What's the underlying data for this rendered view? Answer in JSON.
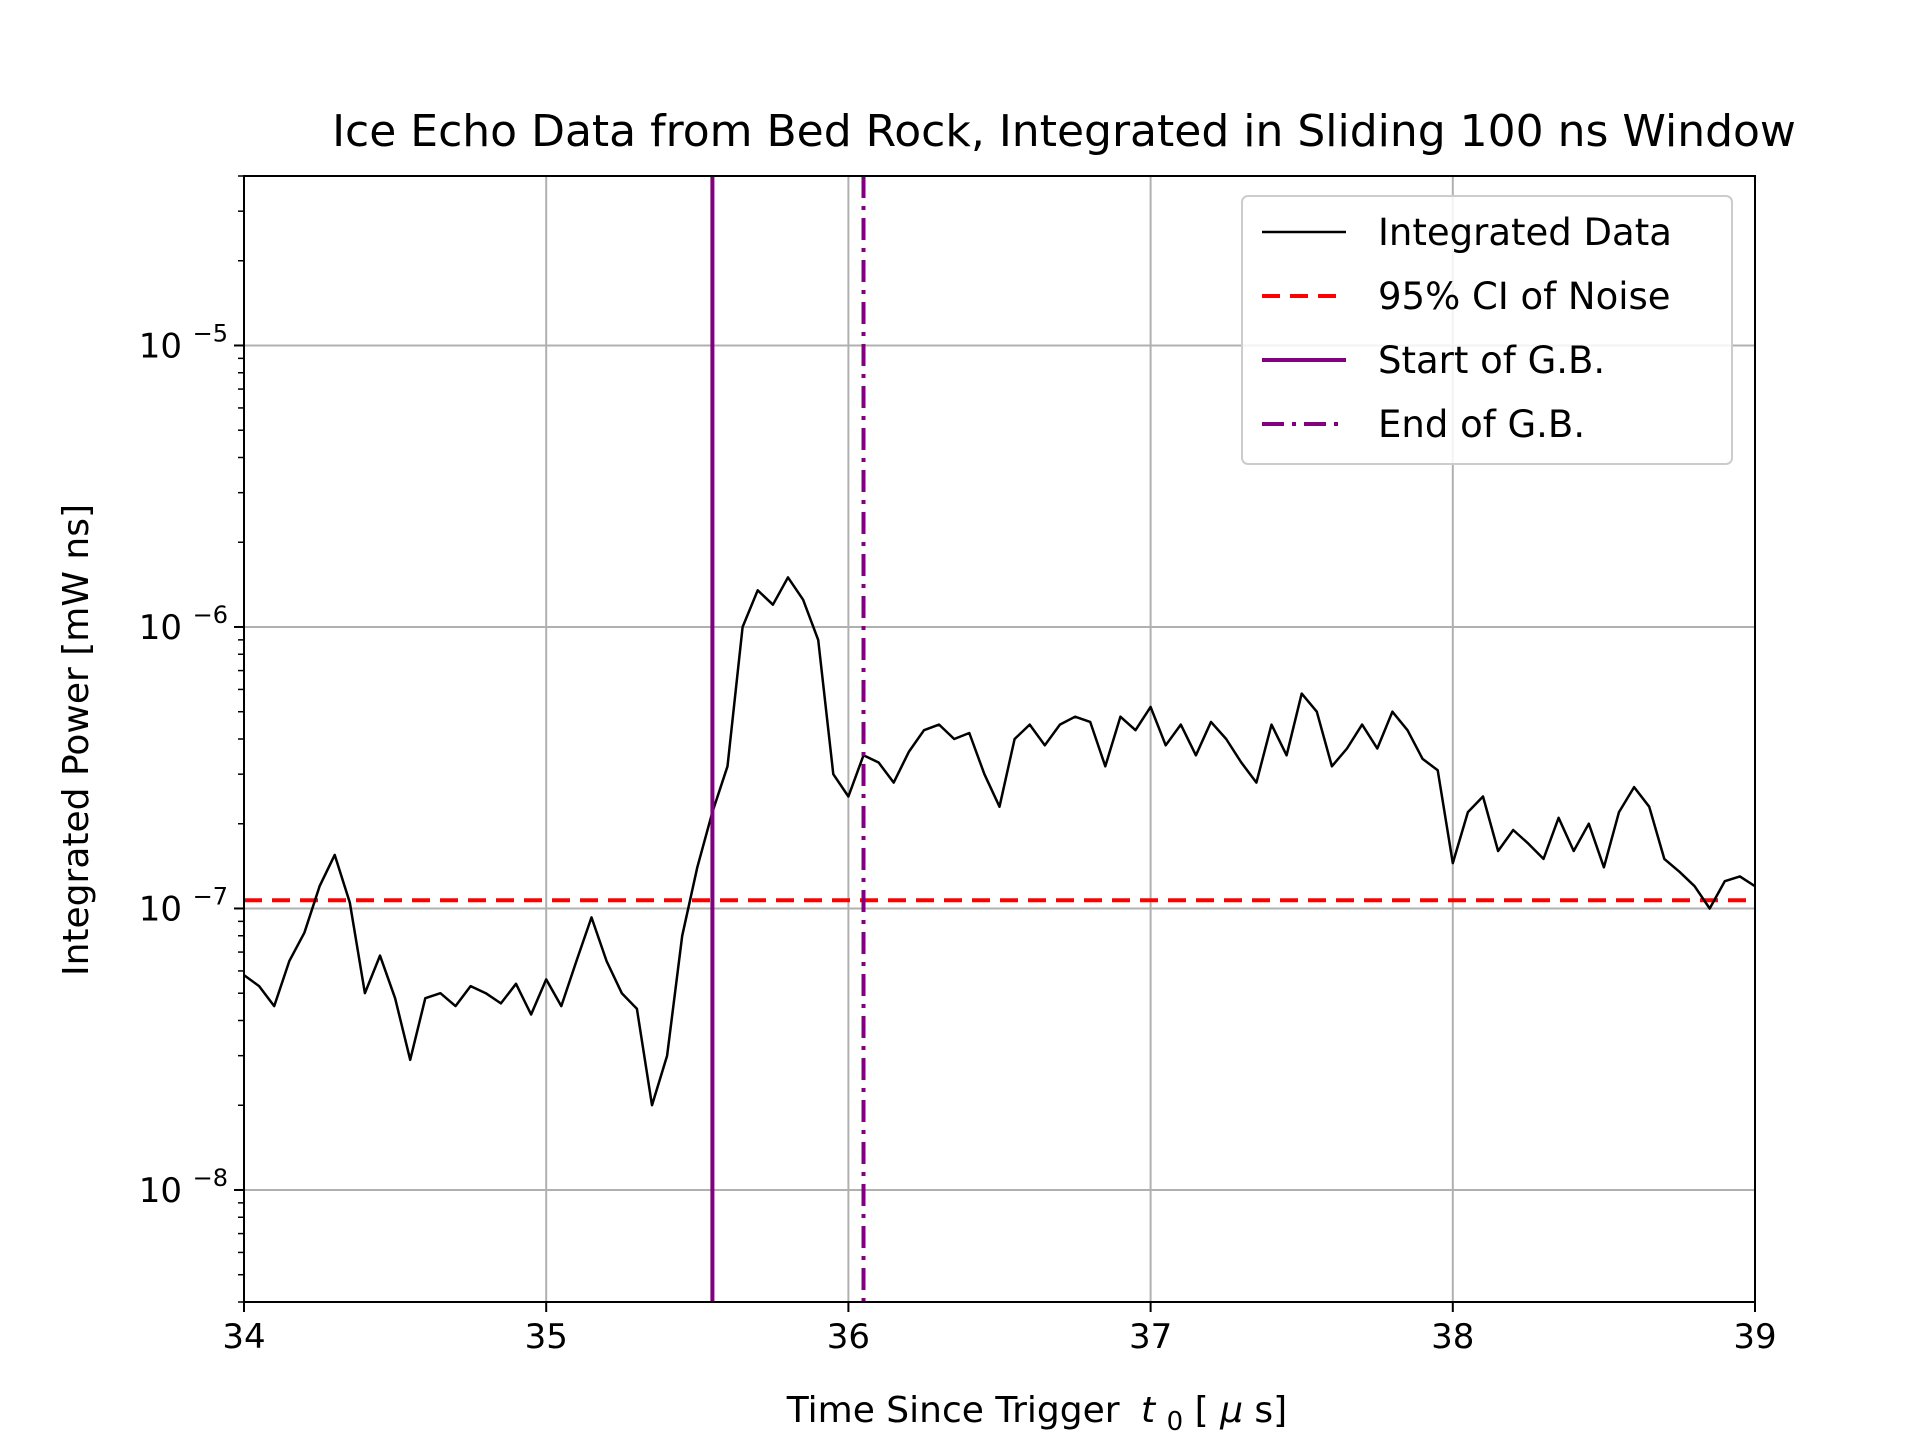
{
  "chart_data": {
    "type": "line",
    "title": "Ice Echo Data from Bed Rock, Integrated in Sliding 100 ns Window",
    "xlabel": "Time Since Trigger",
    "xlabel_symbol": "t",
    "xlabel_subscript": "0",
    "xlabel_unit_open": " [",
    "xlabel_unit_mu": "μ",
    "xlabel_unit_rest": "s]",
    "ylabel": "Integrated Power [mW ns]",
    "xlim": [
      34,
      39
    ],
    "ylim": [
      4e-09,
      4e-05
    ],
    "yscale": "log",
    "grid": true,
    "legend_position": "top-right",
    "x_ticks": [
      "34",
      "35",
      "36",
      "37",
      "38",
      "39"
    ],
    "y_ticks": [
      {
        "value": 1e-08,
        "base": "10",
        "exp": "−8"
      },
      {
        "value": 1e-07,
        "base": "10",
        "exp": "−7"
      },
      {
        "value": 1e-06,
        "base": "10",
        "exp": "−6"
      },
      {
        "value": 1e-05,
        "base": "10",
        "exp": "−5"
      }
    ],
    "series": [
      {
        "name": "Integrated Data",
        "color": "#000000",
        "style": "solid",
        "x": [
          34.0,
          34.05,
          34.1,
          34.15,
          34.2,
          34.25,
          34.3,
          34.35,
          34.4,
          34.45,
          34.5,
          34.55,
          34.6,
          34.65,
          34.7,
          34.75,
          34.8,
          34.85,
          34.9,
          34.95,
          35.0,
          35.05,
          35.1,
          35.15,
          35.2,
          35.25,
          35.3,
          35.35,
          35.4,
          35.45,
          35.5,
          35.55,
          35.6,
          35.65,
          35.7,
          35.75,
          35.8,
          35.85,
          35.9,
          35.95,
          36.0,
          36.05,
          36.1,
          36.15,
          36.2,
          36.25,
          36.3,
          36.35,
          36.4,
          36.45,
          36.5,
          36.55,
          36.6,
          36.65,
          36.7,
          36.75,
          36.8,
          36.85,
          36.9,
          36.95,
          37.0,
          37.05,
          37.1,
          37.15,
          37.2,
          37.25,
          37.3,
          37.35,
          37.4,
          37.45,
          37.5,
          37.55,
          37.6,
          37.65,
          37.7,
          37.75,
          37.8,
          37.85,
          37.9,
          37.95,
          38.0,
          38.05,
          38.1,
          38.15,
          38.2,
          38.25,
          38.3,
          38.35,
          38.4,
          38.45,
          38.5,
          38.55,
          38.6,
          38.65,
          38.7,
          38.75,
          38.8,
          38.85,
          38.9,
          38.95,
          39.0
        ],
        "y": [
          5.8e-08,
          5.3e-08,
          4.5e-08,
          6.5e-08,
          8.2e-08,
          1.2e-07,
          1.55e-07,
          1.05e-07,
          5e-08,
          6.8e-08,
          4.8e-08,
          2.9e-08,
          4.8e-08,
          5e-08,
          4.5e-08,
          5.3e-08,
          5e-08,
          4.6e-08,
          5.4e-08,
          4.2e-08,
          5.6e-08,
          4.5e-08,
          6.5e-08,
          9.3e-08,
          6.5e-08,
          5e-08,
          4.4e-08,
          2e-08,
          3e-08,
          8e-08,
          1.4e-07,
          2.2e-07,
          3.2e-07,
          1e-06,
          1.35e-06,
          1.2e-06,
          1.5e-06,
          1.25e-06,
          9e-07,
          3e-07,
          2.5e-07,
          3.5e-07,
          3.3e-07,
          2.8e-07,
          3.6e-07,
          4.3e-07,
          4.5e-07,
          4e-07,
          4.2e-07,
          3e-07,
          2.3e-07,
          4e-07,
          4.5e-07,
          3.8e-07,
          4.5e-07,
          4.8e-07,
          4.6e-07,
          3.2e-07,
          4.8e-07,
          4.3e-07,
          5.2e-07,
          3.8e-07,
          4.5e-07,
          3.5e-07,
          4.6e-07,
          4e-07,
          3.3e-07,
          2.8e-07,
          4.5e-07,
          3.5e-07,
          5.8e-07,
          5e-07,
          3.2e-07,
          3.7e-07,
          4.5e-07,
          3.7e-07,
          5e-07,
          4.3e-07,
          3.4e-07,
          3.1e-07,
          1.45e-07,
          2.2e-07,
          2.5e-07,
          1.6e-07,
          1.9e-07,
          1.7e-07,
          1.5e-07,
          2.1e-07,
          1.6e-07,
          2e-07,
          1.4e-07,
          2.2e-07,
          2.7e-07,
          2.3e-07,
          1.5e-07,
          1.35e-07,
          1.2e-07,
          1e-07,
          1.25e-07,
          1.3e-07,
          1.2e-07
        ]
      },
      {
        "name": "95% CI of Noise",
        "color": "#ff0000",
        "style": "dashed",
        "value": 1.07e-07
      },
      {
        "name": "Start of G.B.",
        "color": "#800080",
        "style": "solid",
        "value": 35.55
      },
      {
        "name": "End of G.B.",
        "color": "#800080",
        "style": "dashdot",
        "value": 36.05
      }
    ]
  }
}
